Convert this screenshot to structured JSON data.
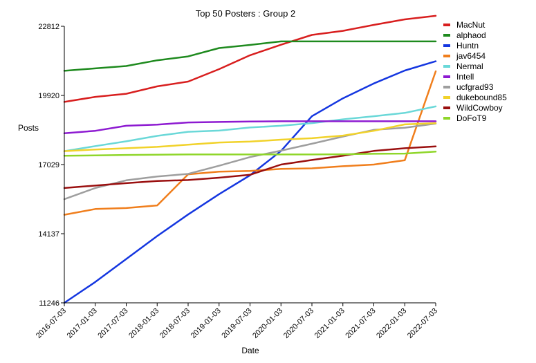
{
  "chart_data": {
    "type": "line",
    "title": "Top 50 Posters : Group 2",
    "xlabel": "Date",
    "ylabel": "Posts",
    "categories": [
      "2016-07-03",
      "2017-01-03",
      "2017-07-03",
      "2018-01-03",
      "2018-07-03",
      "2019-01-03",
      "2019-07-03",
      "2020-01-03",
      "2020-07-03",
      "2021-01-03",
      "2021-07-03",
      "2022-01-03",
      "2022-07-03"
    ],
    "yticks": [
      11246,
      14137,
      17029,
      19920,
      22812
    ],
    "ylim": [
      11246,
      22812
    ],
    "grid": false,
    "legend": "right",
    "series": [
      {
        "name": "MacNut",
        "color": "#d81e1e",
        "values": [
          19650,
          19860,
          19990,
          20300,
          20500,
          21020,
          21600,
          22040,
          22450,
          22620,
          22870,
          23100,
          23250
        ]
      },
      {
        "name": "alphaod",
        "color": "#1e8a1e",
        "values": [
          20950,
          21050,
          21150,
          21390,
          21550,
          21900,
          22030,
          22180,
          22180,
          22180,
          22180,
          22180,
          22180
        ]
      },
      {
        "name": "Huntn",
        "color": "#1436e0",
        "values": [
          11246,
          12120,
          13080,
          14040,
          14940,
          15790,
          16580,
          17600,
          19050,
          19800,
          20420,
          20960,
          21350
        ]
      },
      {
        "name": "jav6454",
        "color": "#f07e1c",
        "values": [
          14930,
          15170,
          15210,
          15320,
          16620,
          16730,
          16760,
          16850,
          16870,
          16960,
          17030,
          17210,
          20930
        ]
      },
      {
        "name": "Nermal",
        "color": "#6ad8d8",
        "values": [
          17590,
          17800,
          18000,
          18230,
          18400,
          18450,
          18580,
          18650,
          18760,
          18920,
          19050,
          19190,
          19460
        ]
      },
      {
        "name": "Intell",
        "color": "#8d1ad1",
        "values": [
          18340,
          18440,
          18650,
          18700,
          18790,
          18810,
          18830,
          18840,
          18840,
          18840,
          18840,
          18840,
          18840
        ]
      },
      {
        "name": "ucfgrad93",
        "color": "#9e9e9e",
        "values": [
          15580,
          16050,
          16370,
          16530,
          16640,
          16980,
          17340,
          17610,
          17900,
          18200,
          18480,
          18570,
          18740
        ]
      },
      {
        "name": "dukebound85",
        "color": "#f1d22a",
        "values": [
          17590,
          17660,
          17710,
          17770,
          17860,
          17950,
          17990,
          18070,
          18130,
          18240,
          18440,
          18710,
          18760
        ]
      },
      {
        "name": "WildCowboy",
        "color": "#9a0f0f",
        "values": [
          16050,
          16150,
          16250,
          16340,
          16380,
          16480,
          16600,
          17030,
          17220,
          17400,
          17600,
          17710,
          17790
        ]
      },
      {
        "name": "DoFoT9",
        "color": "#8fd62a",
        "values": [
          17400,
          17410,
          17430,
          17440,
          17450,
          17450,
          17450,
          17450,
          17450,
          17460,
          17480,
          17490,
          17570
        ]
      }
    ]
  }
}
